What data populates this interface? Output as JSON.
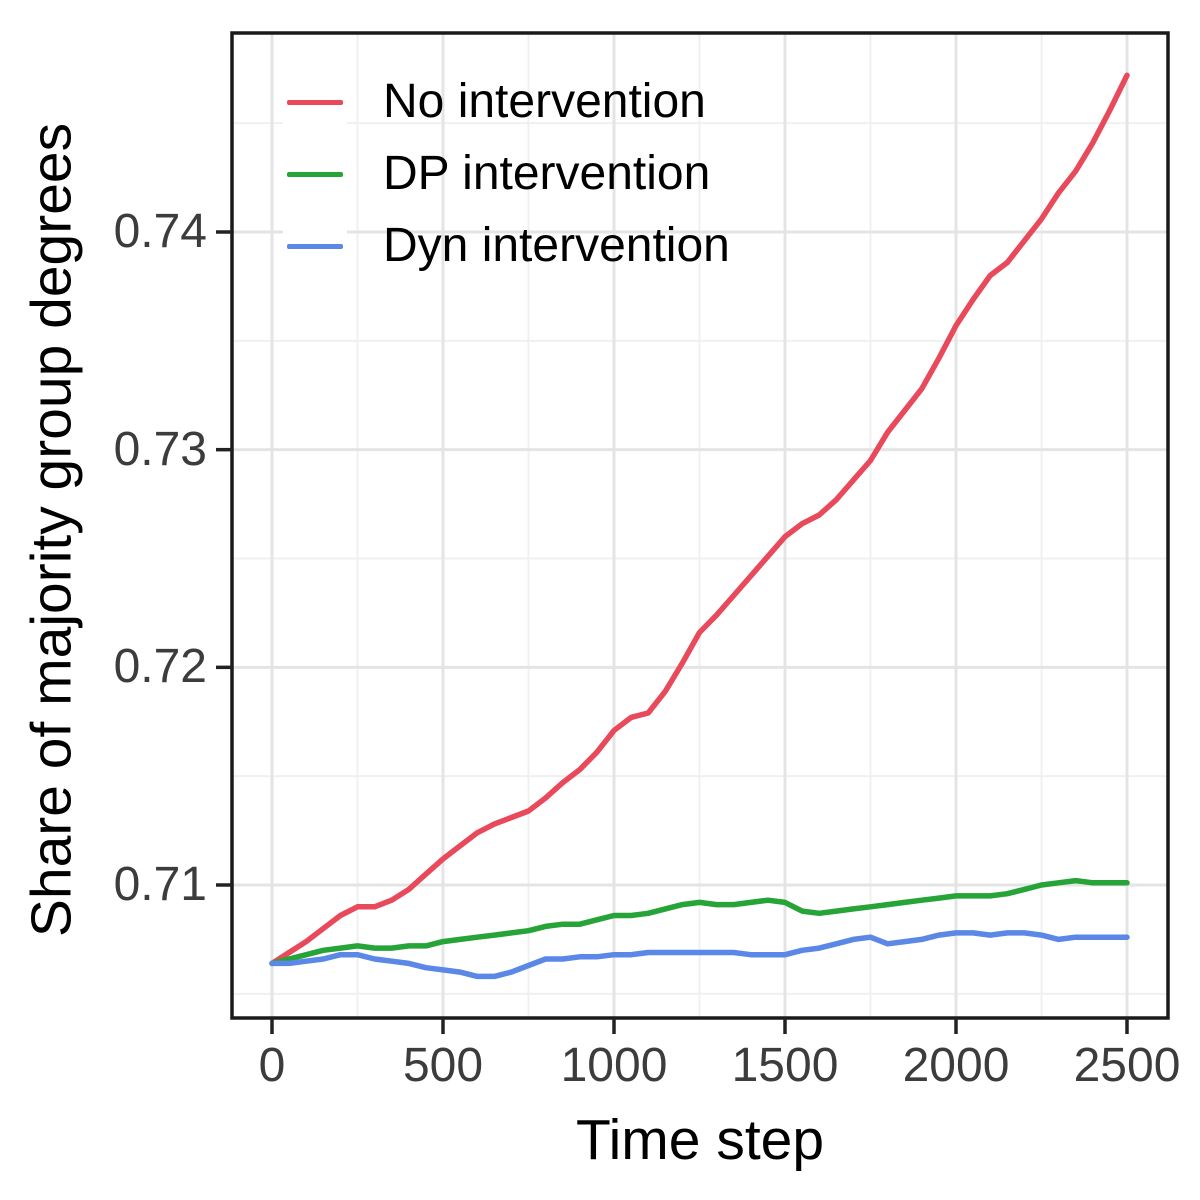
{
  "chart_data": {
    "type": "line",
    "title": "",
    "xlabel": "Time step",
    "ylabel": "Share of majority group degrees",
    "x_ticks": [
      0,
      500,
      1000,
      1500,
      2000,
      2500
    ],
    "x_tick_labels": [
      "0",
      "500",
      "1000",
      "1500",
      "2000",
      "2500"
    ],
    "x_minor_ticks": [
      250,
      750,
      1250,
      1750,
      2250
    ],
    "y_ticks": [
      0.71,
      0.72,
      0.73,
      0.74
    ],
    "y_tick_labels": [
      "0.71",
      "0.72",
      "0.73",
      "0.74"
    ],
    "y_minor_ticks": [
      0.705,
      0.715,
      0.725,
      0.735,
      0.745
    ],
    "xlim": [
      -117,
      2620
    ],
    "ylim": [
      0.7039,
      0.7494
    ],
    "grid": true,
    "legend_position": "inside-top-left",
    "panel_border_color": "#1a1a1a",
    "major_grid_color": "#e4e4e4",
    "minor_grid_color": "#f0f0f0",
    "tick_label_color": "#3c3c3c",
    "x_start": 0,
    "x_step": 50,
    "series": [
      {
        "name": "No intervention",
        "color": "#e8495b",
        "values": [
          0.7064,
          0.7069,
          0.7074,
          0.708,
          0.7086,
          0.709,
          0.709,
          0.7093,
          0.7098,
          0.7105,
          0.7112,
          0.7118,
          0.7124,
          0.7128,
          0.7131,
          0.7134,
          0.714,
          0.7147,
          0.7153,
          0.7161,
          0.7171,
          0.7177,
          0.7179,
          0.7189,
          0.7202,
          0.7216,
          0.7224,
          0.7233,
          0.7242,
          0.7251,
          0.726,
          0.7266,
          0.727,
          0.7277,
          0.7286,
          0.7295,
          0.7308,
          0.7318,
          0.7328,
          0.7342,
          0.7357,
          0.7369,
          0.738,
          0.7386,
          0.7396,
          0.7406,
          0.7418,
          0.7428,
          0.7441,
          0.7456,
          0.7472
        ]
      },
      {
        "name": "DP intervention",
        "color": "#26a437",
        "values": [
          0.7064,
          0.7066,
          0.7068,
          0.707,
          0.7071,
          0.7072,
          0.7071,
          0.7071,
          0.7072,
          0.7072,
          0.7074,
          0.7075,
          0.7076,
          0.7077,
          0.7078,
          0.7079,
          0.7081,
          0.7082,
          0.7082,
          0.7084,
          0.7086,
          0.7086,
          0.7087,
          0.7089,
          0.7091,
          0.7092,
          0.7091,
          0.7091,
          0.7092,
          0.7093,
          0.7092,
          0.7088,
          0.7087,
          0.7088,
          0.7089,
          0.709,
          0.7091,
          0.7092,
          0.7093,
          0.7094,
          0.7095,
          0.7095,
          0.7095,
          0.7096,
          0.7098,
          0.71,
          0.7101,
          0.7102,
          0.7101,
          0.7101,
          0.7101
        ]
      },
      {
        "name": "Dyn intervention",
        "color": "#5b87e6",
        "values": [
          0.7064,
          0.7064,
          0.7065,
          0.7066,
          0.7068,
          0.7068,
          0.7066,
          0.7065,
          0.7064,
          0.7062,
          0.7061,
          0.706,
          0.7058,
          0.7058,
          0.706,
          0.7063,
          0.7066,
          0.7066,
          0.7067,
          0.7067,
          0.7068,
          0.7068,
          0.7069,
          0.7069,
          0.7069,
          0.7069,
          0.7069,
          0.7069,
          0.7068,
          0.7068,
          0.7068,
          0.707,
          0.7071,
          0.7073,
          0.7075,
          0.7076,
          0.7073,
          0.7074,
          0.7075,
          0.7077,
          0.7078,
          0.7078,
          0.7077,
          0.7078,
          0.7078,
          0.7077,
          0.7075,
          0.7076,
          0.7076,
          0.7076,
          0.7076
        ]
      }
    ]
  }
}
